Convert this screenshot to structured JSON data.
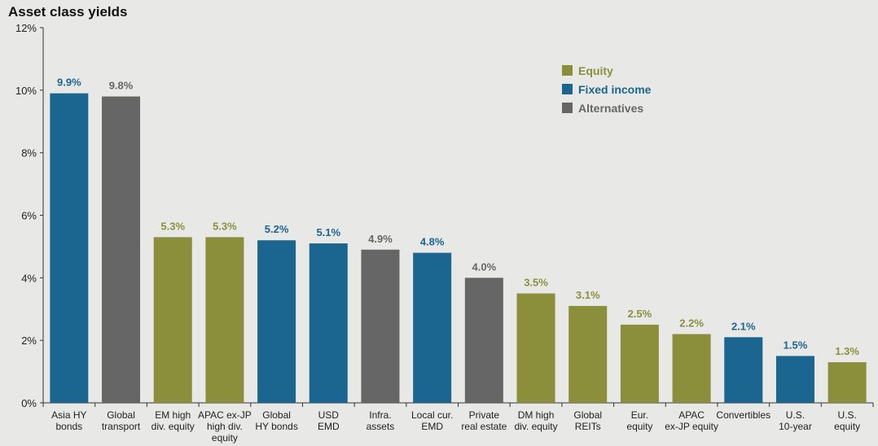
{
  "chart_data": {
    "type": "bar",
    "title": "Asset class yields",
    "ylim": [
      0,
      12
    ],
    "yticks": [
      "0%",
      "2%",
      "4%",
      "6%",
      "8%",
      "10%",
      "12%"
    ],
    "ytick_values": [
      0,
      2,
      4,
      6,
      8,
      10,
      12
    ],
    "grid": false,
    "legend_position": "top-right",
    "legend": [
      {
        "name": "Equity",
        "color": "#8b8f3c"
      },
      {
        "name": "Fixed income",
        "color": "#1b6690"
      },
      {
        "name": "Alternatives",
        "color": "#666666"
      }
    ],
    "categories": [
      [
        "Asia HY",
        "bonds"
      ],
      [
        "Global",
        "transport"
      ],
      [
        "EM high",
        "div. equity"
      ],
      [
        "APAC ex-JP",
        "high div.",
        "equity"
      ],
      [
        "Global",
        "HY bonds"
      ],
      [
        "USD",
        "EMD"
      ],
      [
        "Infra.",
        "assets"
      ],
      [
        "Local cur.",
        "EMD"
      ],
      [
        "Private",
        "real estate"
      ],
      [
        "DM high",
        "div. equity"
      ],
      [
        "Global",
        "REITs"
      ],
      [
        "Eur.",
        "equity"
      ],
      [
        "APAC",
        "ex-JP equity"
      ],
      [
        "Convertibles"
      ],
      [
        "U.S.",
        "10-year"
      ],
      [
        "U.S.",
        "equity"
      ]
    ],
    "values": [
      9.9,
      9.8,
      5.3,
      5.3,
      5.2,
      5.1,
      4.9,
      4.8,
      4.0,
      3.5,
      3.1,
      2.5,
      2.2,
      2.1,
      1.5,
      1.3
    ],
    "value_labels": [
      "9.9%",
      "9.8%",
      "5.3%",
      "5.3%",
      "5.2%",
      "5.1%",
      "4.9%",
      "4.8%",
      "4.0%",
      "3.5%",
      "3.1%",
      "2.5%",
      "2.2%",
      "2.1%",
      "1.5%",
      "1.3%"
    ],
    "groups": [
      "Fixed income",
      "Alternatives",
      "Equity",
      "Equity",
      "Fixed income",
      "Fixed income",
      "Alternatives",
      "Fixed income",
      "Alternatives",
      "Equity",
      "Equity",
      "Equity",
      "Equity",
      "Fixed income",
      "Fixed income",
      "Equity"
    ]
  }
}
